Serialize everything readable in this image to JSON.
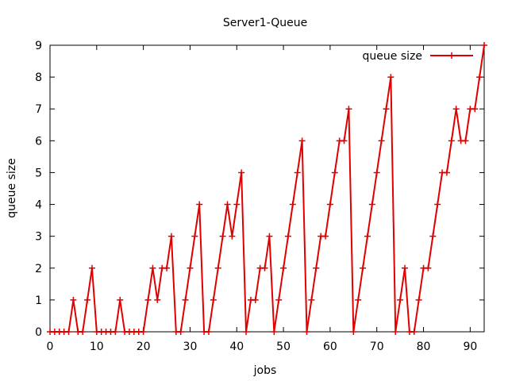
{
  "chart_data": {
    "type": "line",
    "title": "Server1-Queue",
    "xlabel": "jobs",
    "ylabel": "queue size",
    "xlim": [
      0,
      93
    ],
    "ylim": [
      0,
      9
    ],
    "x_ticks": [
      0,
      10,
      20,
      30,
      40,
      50,
      60,
      70,
      80,
      90
    ],
    "y_ticks": [
      0,
      1,
      2,
      3,
      4,
      5,
      6,
      7,
      8,
      9
    ],
    "grid": false,
    "legend": "top-right",
    "series": [
      {
        "name": "queue size",
        "color": "#e00000",
        "marker": "plus",
        "x": [
          0,
          1,
          2,
          3,
          4,
          5,
          6,
          7,
          8,
          9,
          10,
          11,
          12,
          13,
          14,
          15,
          16,
          17,
          18,
          19,
          20,
          21,
          22,
          23,
          24,
          25,
          26,
          27,
          28,
          29,
          30,
          31,
          32,
          33,
          34,
          35,
          36,
          37,
          38,
          39,
          40,
          41,
          42,
          43,
          44,
          45,
          46,
          47,
          48,
          49,
          50,
          51,
          52,
          53,
          54,
          55,
          56,
          57,
          58,
          59,
          60,
          61,
          62,
          63,
          64,
          65,
          66,
          67,
          68,
          69,
          70,
          71,
          72,
          73,
          74,
          75,
          76,
          77,
          78,
          79,
          80,
          81,
          82,
          83,
          84,
          85,
          86,
          87,
          88,
          89,
          90,
          91,
          92,
          93
        ],
        "y": [
          0,
          0,
          0,
          0,
          0,
          1,
          0,
          0,
          1,
          2,
          0,
          0,
          0,
          0,
          0,
          1,
          0,
          0,
          0,
          0,
          0,
          1,
          2,
          1,
          2,
          2,
          3,
          0,
          0,
          1,
          2,
          3,
          4,
          0,
          0,
          1,
          2,
          3,
          4,
          3,
          4,
          5,
          0,
          1,
          1,
          2,
          2,
          3,
          0,
          1,
          2,
          3,
          4,
          5,
          6,
          0,
          1,
          2,
          3,
          3,
          4,
          5,
          6,
          6,
          7,
          0,
          1,
          2,
          3,
          4,
          5,
          6,
          7,
          8,
          0,
          1,
          2,
          0,
          0,
          1,
          2,
          2,
          3,
          4,
          5,
          5,
          6,
          7,
          6,
          6,
          7,
          7,
          8,
          9
        ]
      }
    ]
  }
}
